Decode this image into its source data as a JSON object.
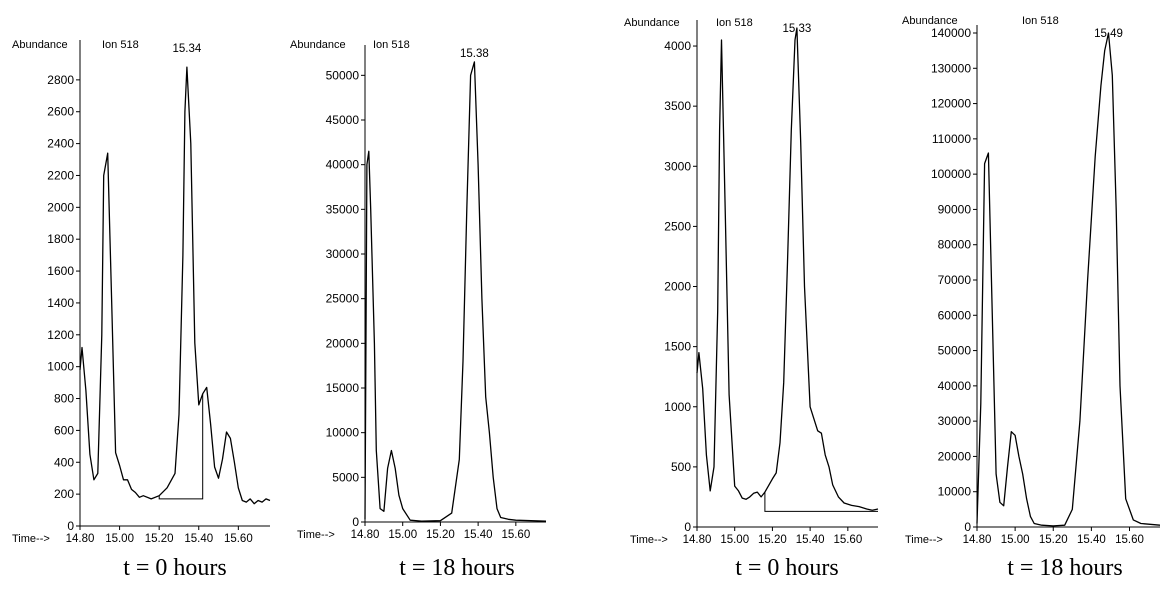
{
  "chart_data": [
    {
      "type": "line",
      "abundance_label": "Abundance",
      "ion_label": "Ion 518",
      "time_label": "Time-->",
      "peak_label": "15.34",
      "caption": "t = 0 hours",
      "ylim": [
        0,
        3000
      ],
      "yticks": [
        "0",
        "200",
        "400",
        "600",
        "800",
        "1000",
        "1200",
        "1400",
        "1600",
        "1800",
        "2000",
        "2200",
        "2400",
        "2600",
        "2800"
      ],
      "xlim": [
        14.8,
        15.76
      ],
      "xticks": [
        "14.80",
        "15.00",
        "15.20",
        "15.40",
        "15.60"
      ],
      "x": [
        14.8,
        14.81,
        14.83,
        14.85,
        14.87,
        14.89,
        14.91,
        14.92,
        14.94,
        14.96,
        14.98,
        15.0,
        15.02,
        15.04,
        15.06,
        15.08,
        15.1,
        15.12,
        15.16,
        15.2,
        15.24,
        15.28,
        15.3,
        15.32,
        15.33,
        15.34,
        15.36,
        15.38,
        15.4,
        15.42,
        15.44,
        15.46,
        15.48,
        15.5,
        15.52,
        15.54,
        15.56,
        15.58,
        15.6,
        15.62,
        15.64,
        15.66,
        15.68,
        15.7,
        15.72,
        15.74,
        15.76
      ],
      "y": [
        980,
        1120,
        850,
        450,
        290,
        330,
        1200,
        2200,
        2340,
        1400,
        460,
        380,
        290,
        290,
        230,
        210,
        180,
        190,
        170,
        190,
        240,
        330,
        700,
        1700,
        2600,
        2880,
        2400,
        1150,
        760,
        830,
        870,
        640,
        370,
        300,
        420,
        590,
        550,
        400,
        240,
        160,
        150,
        170,
        140,
        160,
        150,
        170,
        160
      ],
      "baseline": {
        "x_start": 15.2,
        "x_end": 15.42,
        "y": 170
      }
    },
    {
      "type": "line",
      "abundance_label": "Abundance",
      "ion_label": "Ion 518",
      "time_label": "Time-->",
      "peak_label": "15.38",
      "caption": "t = 18 hours",
      "ylim": [
        0,
        52500
      ],
      "yticks": [
        "0",
        "5000",
        "10000",
        "15000",
        "20000",
        "25000",
        "30000",
        "35000",
        "40000",
        "45000",
        "50000"
      ],
      "xlim": [
        14.8,
        15.76
      ],
      "xticks": [
        "14.80",
        "15.00",
        "15.20",
        "15.40",
        "15.60"
      ],
      "x": [
        14.8,
        14.81,
        14.82,
        14.83,
        14.85,
        14.86,
        14.88,
        14.9,
        14.92,
        14.94,
        14.96,
        14.98,
        15.0,
        15.04,
        15.1,
        15.2,
        15.26,
        15.3,
        15.32,
        15.34,
        15.36,
        15.38,
        15.4,
        15.42,
        15.44,
        15.46,
        15.48,
        15.5,
        15.52,
        15.56,
        15.6,
        15.76
      ],
      "y": [
        300,
        40000,
        41500,
        35000,
        20000,
        8000,
        1500,
        1200,
        6000,
        8000,
        6000,
        3000,
        1500,
        200,
        100,
        150,
        1000,
        7000,
        18000,
        35000,
        50000,
        51500,
        40000,
        25000,
        14000,
        10000,
        5000,
        1500,
        500,
        300,
        200,
        100
      ]
    },
    {
      "type": "line",
      "abundance_label": "Abundance",
      "ion_label": "Ion 518",
      "time_label": "Time-->",
      "peak_label": "15.33",
      "caption": "t = 0 hours",
      "ylim": [
        0,
        4150
      ],
      "yticks": [
        "0",
        "500",
        "1000",
        "1500",
        "2000",
        "2500",
        "3000",
        "3500",
        "4000"
      ],
      "xlim": [
        14.8,
        15.76
      ],
      "xticks": [
        "14.80",
        "15.00",
        "15.20",
        "15.40",
        "15.60"
      ],
      "x": [
        14.8,
        14.81,
        14.83,
        14.85,
        14.87,
        14.89,
        14.91,
        14.92,
        14.93,
        14.95,
        14.97,
        15.0,
        15.02,
        15.04,
        15.06,
        15.08,
        15.1,
        15.12,
        15.14,
        15.16,
        15.2,
        15.22,
        15.24,
        15.26,
        15.28,
        15.3,
        15.32,
        15.33,
        15.35,
        15.37,
        15.4,
        15.42,
        15.44,
        15.46,
        15.48,
        15.5,
        15.52,
        15.55,
        15.58,
        15.62,
        15.66,
        15.7,
        15.73,
        15.76
      ],
      "y": [
        1280,
        1450,
        1150,
        600,
        300,
        500,
        1800,
        3300,
        4050,
        2600,
        1100,
        340,
        300,
        240,
        230,
        250,
        280,
        290,
        250,
        290,
        400,
        450,
        700,
        1200,
        2200,
        3300,
        4050,
        4150,
        3200,
        2000,
        1000,
        900,
        800,
        780,
        600,
        500,
        350,
        250,
        200,
        180,
        170,
        150,
        140,
        150
      ],
      "baseline": {
        "x_start": 15.16,
        "x_end": 15.76,
        "y": 130
      }
    },
    {
      "type": "line",
      "abundance_label": "Abundance",
      "ion_label": "Ion 518",
      "time_label": "Time-->",
      "peak_label": "15.49",
      "caption": "t = 18 hours",
      "ylim": [
        0,
        140000
      ],
      "yticks": [
        "0",
        "10000",
        "20000",
        "30000",
        "40000",
        "50000",
        "60000",
        "70000",
        "80000",
        "90000",
        "100000",
        "110000",
        "120000",
        "130000",
        "140000"
      ],
      "xlim": [
        14.8,
        15.76
      ],
      "xticks": [
        "14.80",
        "15.00",
        "15.20",
        "15.40",
        "15.60"
      ],
      "x": [
        14.8,
        14.82,
        14.84,
        14.86,
        14.88,
        14.9,
        14.92,
        14.94,
        14.96,
        14.98,
        15.0,
        15.02,
        15.04,
        15.06,
        15.08,
        15.1,
        15.14,
        15.2,
        15.26,
        15.3,
        15.34,
        15.38,
        15.42,
        15.45,
        15.47,
        15.49,
        15.51,
        15.53,
        15.55,
        15.58,
        15.62,
        15.66,
        15.76
      ],
      "y": [
        1000,
        35000,
        103000,
        106000,
        60000,
        15000,
        7000,
        6000,
        17000,
        27000,
        26000,
        20000,
        15000,
        8000,
        3000,
        1000,
        500,
        300,
        500,
        5000,
        30000,
        70000,
        105000,
        125000,
        135000,
        140000,
        128000,
        90000,
        40000,
        8000,
        2000,
        1000,
        500
      ]
    }
  ]
}
